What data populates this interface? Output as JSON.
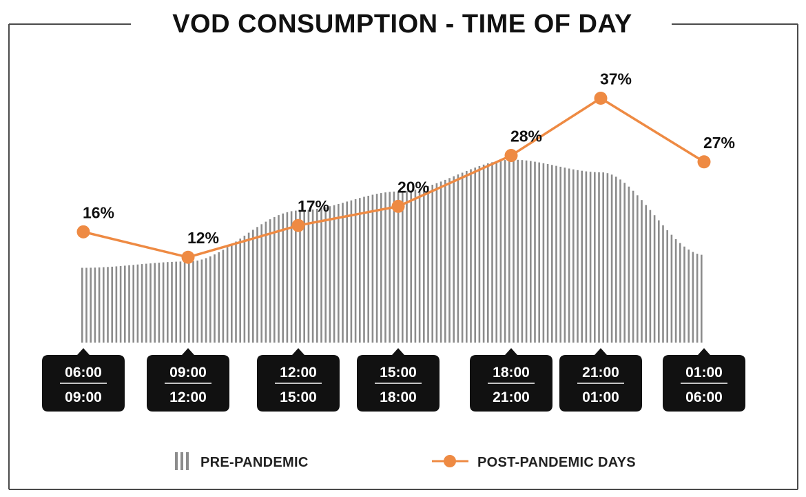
{
  "title": "VOD CONSUMPTION - TIME OF DAY",
  "colors": {
    "post": "#ee8a43",
    "pre": "#8c8c8c",
    "frame": "#4a4a4a",
    "slot_bg": "#111111"
  },
  "legend": {
    "pre_label": "PRE-PANDEMIC",
    "post_label": "POST-PANDEMIC DAYS"
  },
  "chart_data": {
    "type": "line",
    "title": "VOD CONSUMPTION - TIME OF DAY",
    "xlabel": "",
    "ylabel": "",
    "ylim": [
      0,
      40
    ],
    "grid": false,
    "legend_position": "bottom",
    "categories": [
      {
        "start": "06:00",
        "end": "09:00"
      },
      {
        "start": "09:00",
        "end": "12:00"
      },
      {
        "start": "12:00",
        "end": "15:00"
      },
      {
        "start": "15:00",
        "end": "18:00"
      },
      {
        "start": "18:00",
        "end": "21:00"
      },
      {
        "start": "21:00",
        "end": "01:00"
      },
      {
        "start": "01:00",
        "end": "06:00"
      }
    ],
    "series": [
      {
        "name": "POST-PANDEMIC DAYS",
        "type": "line",
        "values": [
          16,
          12,
          17,
          20,
          28,
          37,
          27
        ],
        "labels": [
          "16%",
          "12%",
          "17%",
          "20%",
          "28%",
          "37%",
          "27%"
        ]
      },
      {
        "name": "PRE-PANDEMIC",
        "type": "area",
        "values": [
          11,
          12,
          20,
          23,
          28,
          26,
          13
        ]
      }
    ]
  }
}
